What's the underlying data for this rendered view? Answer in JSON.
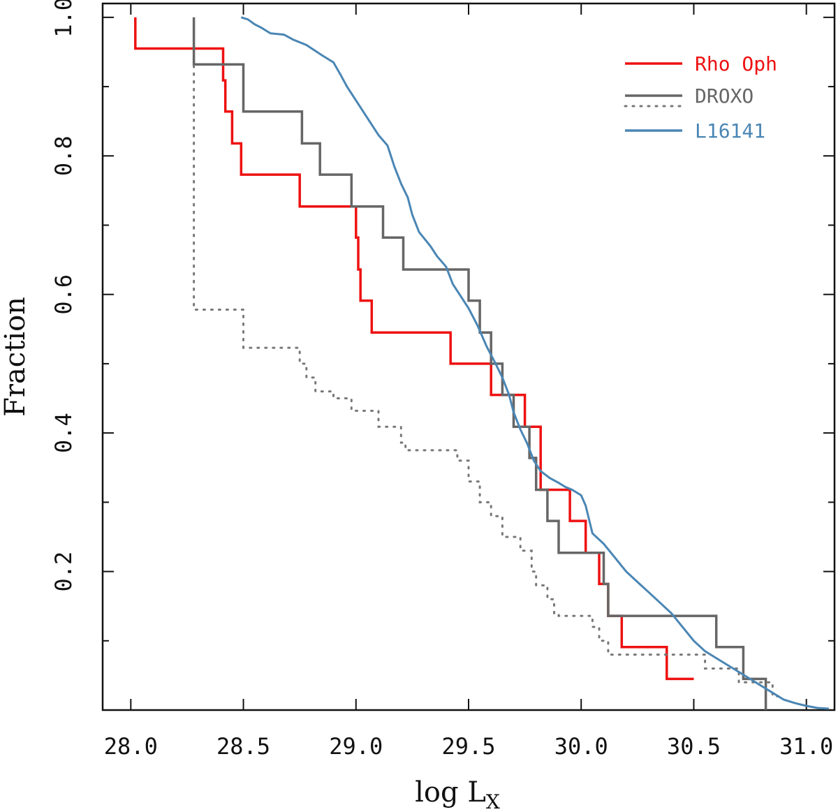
{
  "chart_data": {
    "type": "line",
    "xlabel": "log L",
    "xlabel_sub": "X",
    "ylabel": "Fraction",
    "xlim": [
      27.875,
      31.125
    ],
    "ylim": [
      0.0,
      1.02
    ],
    "xticks": [
      28.0,
      28.5,
      29.0,
      29.5,
      30.0,
      30.5,
      31.0
    ],
    "xtick_labels": [
      "28.0",
      "28.5",
      "29.0",
      "29.5",
      "30.0",
      "30.5",
      "31.0"
    ],
    "yticks": [
      0.2,
      0.4,
      0.6,
      0.8,
      1.0
    ],
    "ytick_labels": [
      "0.2",
      "0.4",
      "0.6",
      "0.8",
      "1.0"
    ],
    "legend_position": "top-right",
    "series": [
      {
        "name": "Rho Oph",
        "color": "#ee1111",
        "style": "solid",
        "step": true,
        "points": [
          [
            28.02,
            1.0
          ],
          [
            28.02,
            0.955
          ],
          [
            28.41,
            0.955
          ],
          [
            28.41,
            0.909
          ],
          [
            28.42,
            0.909
          ],
          [
            28.42,
            0.864
          ],
          [
            28.45,
            0.864
          ],
          [
            28.45,
            0.818
          ],
          [
            28.49,
            0.818
          ],
          [
            28.49,
            0.773
          ],
          [
            28.75,
            0.773
          ],
          [
            28.75,
            0.727
          ],
          [
            29.0,
            0.727
          ],
          [
            29.0,
            0.682
          ],
          [
            29.01,
            0.682
          ],
          [
            29.01,
            0.636
          ],
          [
            29.02,
            0.636
          ],
          [
            29.02,
            0.591
          ],
          [
            29.07,
            0.591
          ],
          [
            29.07,
            0.545
          ],
          [
            29.42,
            0.545
          ],
          [
            29.42,
            0.5
          ],
          [
            29.6,
            0.5
          ],
          [
            29.6,
            0.455
          ],
          [
            29.75,
            0.455
          ],
          [
            29.75,
            0.409
          ],
          [
            29.82,
            0.409
          ],
          [
            29.82,
            0.318
          ],
          [
            29.95,
            0.318
          ],
          [
            29.95,
            0.273
          ],
          [
            30.02,
            0.273
          ],
          [
            30.02,
            0.227
          ],
          [
            30.08,
            0.227
          ],
          [
            30.08,
            0.182
          ],
          [
            30.12,
            0.182
          ],
          [
            30.12,
            0.136
          ],
          [
            30.18,
            0.136
          ],
          [
            30.18,
            0.091
          ],
          [
            30.38,
            0.091
          ],
          [
            30.38,
            0.045
          ],
          [
            30.5,
            0.045
          ]
        ]
      },
      {
        "name": "DROXO",
        "color": "#666666",
        "style": "solid",
        "step": true,
        "points": [
          [
            28.28,
            1.0
          ],
          [
            28.28,
            0.932
          ],
          [
            28.5,
            0.932
          ],
          [
            28.5,
            0.864
          ],
          [
            28.76,
            0.864
          ],
          [
            28.76,
            0.818
          ],
          [
            28.84,
            0.818
          ],
          [
            28.84,
            0.773
          ],
          [
            28.98,
            0.773
          ],
          [
            28.98,
            0.727
          ],
          [
            29.12,
            0.727
          ],
          [
            29.12,
            0.682
          ],
          [
            29.21,
            0.682
          ],
          [
            29.21,
            0.636
          ],
          [
            29.5,
            0.636
          ],
          [
            29.5,
            0.591
          ],
          [
            29.55,
            0.591
          ],
          [
            29.55,
            0.545
          ],
          [
            29.6,
            0.545
          ],
          [
            29.6,
            0.5
          ],
          [
            29.65,
            0.5
          ],
          [
            29.65,
            0.455
          ],
          [
            29.7,
            0.455
          ],
          [
            29.7,
            0.409
          ],
          [
            29.77,
            0.409
          ],
          [
            29.77,
            0.364
          ],
          [
            29.8,
            0.364
          ],
          [
            29.8,
            0.318
          ],
          [
            29.85,
            0.318
          ],
          [
            29.85,
            0.273
          ],
          [
            29.9,
            0.273
          ],
          [
            29.9,
            0.227
          ],
          [
            30.1,
            0.227
          ],
          [
            30.1,
            0.182
          ],
          [
            30.12,
            0.182
          ],
          [
            30.12,
            0.136
          ],
          [
            30.6,
            0.136
          ],
          [
            30.6,
            0.091
          ],
          [
            30.72,
            0.091
          ],
          [
            30.72,
            0.045
          ],
          [
            30.82,
            0.045
          ],
          [
            30.82,
            0.0
          ]
        ]
      },
      {
        "name": "DROXO (dotted)",
        "color": "#777777",
        "style": "dotted",
        "step": true,
        "points": [
          [
            28.28,
            0.93
          ],
          [
            28.28,
            0.578
          ],
          [
            28.5,
            0.578
          ],
          [
            28.5,
            0.523
          ],
          [
            28.75,
            0.523
          ],
          [
            28.75,
            0.5
          ],
          [
            28.78,
            0.5
          ],
          [
            28.78,
            0.48
          ],
          [
            28.82,
            0.48
          ],
          [
            28.82,
            0.46
          ],
          [
            28.9,
            0.46
          ],
          [
            28.9,
            0.45
          ],
          [
            28.98,
            0.45
          ],
          [
            28.98,
            0.432
          ],
          [
            29.1,
            0.432
          ],
          [
            29.1,
            0.409
          ],
          [
            29.2,
            0.409
          ],
          [
            29.2,
            0.386
          ],
          [
            29.22,
            0.386
          ],
          [
            29.22,
            0.375
          ],
          [
            29.45,
            0.375
          ],
          [
            29.45,
            0.36
          ],
          [
            29.5,
            0.36
          ],
          [
            29.5,
            0.33
          ],
          [
            29.55,
            0.33
          ],
          [
            29.55,
            0.3
          ],
          [
            29.6,
            0.3
          ],
          [
            29.6,
            0.28
          ],
          [
            29.65,
            0.28
          ],
          [
            29.65,
            0.25
          ],
          [
            29.73,
            0.25
          ],
          [
            29.73,
            0.23
          ],
          [
            29.78,
            0.23
          ],
          [
            29.78,
            0.2
          ],
          [
            29.8,
            0.2
          ],
          [
            29.8,
            0.18
          ],
          [
            29.85,
            0.18
          ],
          [
            29.85,
            0.16
          ],
          [
            29.88,
            0.16
          ],
          [
            29.88,
            0.14
          ],
          [
            29.9,
            0.14
          ],
          [
            29.9,
            0.136
          ],
          [
            30.05,
            0.136
          ],
          [
            30.05,
            0.12
          ],
          [
            30.08,
            0.12
          ],
          [
            30.08,
            0.1
          ],
          [
            30.12,
            0.1
          ],
          [
            30.12,
            0.08
          ],
          [
            30.55,
            0.08
          ],
          [
            30.55,
            0.06
          ],
          [
            30.7,
            0.06
          ],
          [
            30.7,
            0.04
          ],
          [
            30.85,
            0.04
          ],
          [
            30.85,
            0.02
          ],
          [
            30.9,
            0.02
          ]
        ]
      },
      {
        "name": "L16141",
        "color": "#4a86b4",
        "style": "solid",
        "step": false,
        "points": [
          [
            28.49,
            1.0
          ],
          [
            28.52,
            0.997
          ],
          [
            28.55,
            0.99
          ],
          [
            28.58,
            0.985
          ],
          [
            28.62,
            0.977
          ],
          [
            28.68,
            0.975
          ],
          [
            28.72,
            0.968
          ],
          [
            28.78,
            0.96
          ],
          [
            28.85,
            0.945
          ],
          [
            28.9,
            0.935
          ],
          [
            28.93,
            0.918
          ],
          [
            28.96,
            0.9
          ],
          [
            29.0,
            0.88
          ],
          [
            29.05,
            0.855
          ],
          [
            29.1,
            0.83
          ],
          [
            29.14,
            0.815
          ],
          [
            29.17,
            0.785
          ],
          [
            29.2,
            0.76
          ],
          [
            29.23,
            0.74
          ],
          [
            29.25,
            0.715
          ],
          [
            29.28,
            0.69
          ],
          [
            29.33,
            0.67
          ],
          [
            29.36,
            0.655
          ],
          [
            29.4,
            0.64
          ],
          [
            29.43,
            0.615
          ],
          [
            29.46,
            0.6
          ],
          [
            29.5,
            0.58
          ],
          [
            29.54,
            0.555
          ],
          [
            29.58,
            0.525
          ],
          [
            29.62,
            0.5
          ],
          [
            29.65,
            0.48
          ],
          [
            29.68,
            0.455
          ],
          [
            29.7,
            0.43
          ],
          [
            29.73,
            0.405
          ],
          [
            29.76,
            0.385
          ],
          [
            29.79,
            0.36
          ],
          [
            29.82,
            0.345
          ],
          [
            29.86,
            0.335
          ],
          [
            29.9,
            0.328
          ],
          [
            29.93,
            0.322
          ],
          [
            29.96,
            0.318
          ],
          [
            30.0,
            0.31
          ],
          [
            30.02,
            0.295
          ],
          [
            30.05,
            0.255
          ],
          [
            30.1,
            0.24
          ],
          [
            30.15,
            0.22
          ],
          [
            30.2,
            0.2
          ],
          [
            30.25,
            0.185
          ],
          [
            30.3,
            0.17
          ],
          [
            30.35,
            0.155
          ],
          [
            30.4,
            0.14
          ],
          [
            30.45,
            0.12
          ],
          [
            30.5,
            0.1
          ],
          [
            30.55,
            0.085
          ],
          [
            30.6,
            0.075
          ],
          [
            30.65,
            0.065
          ],
          [
            30.7,
            0.055
          ],
          [
            30.75,
            0.045
          ],
          [
            30.8,
            0.035
          ],
          [
            30.85,
            0.025
          ],
          [
            30.9,
            0.015
          ],
          [
            30.95,
            0.01
          ],
          [
            31.0,
            0.006
          ],
          [
            31.05,
            0.003
          ],
          [
            31.1,
            0.002
          ]
        ]
      }
    ],
    "legend": [
      {
        "label": "Rho Oph",
        "color": "#ee1111",
        "style": "solid"
      },
      {
        "label": "DROXO",
        "color": "#666666",
        "style": "solid"
      },
      {
        "label": "",
        "color": "#777777",
        "style": "dotted"
      },
      {
        "label": "L16141",
        "color": "#4a86b4",
        "style": "solid"
      }
    ]
  }
}
